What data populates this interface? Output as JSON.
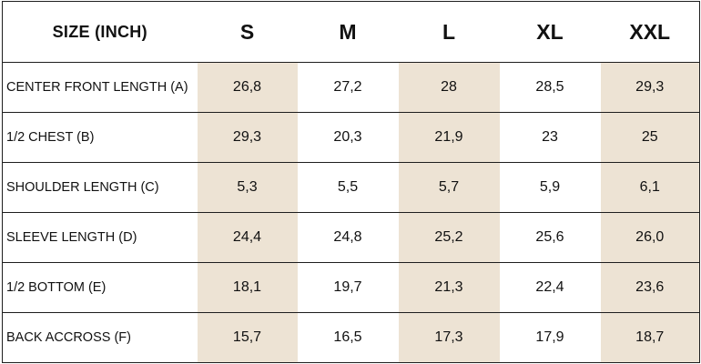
{
  "header": {
    "corner_label": "SIZE (INCH)",
    "sizes": [
      "S",
      "M",
      "L",
      "XL",
      "XXL"
    ]
  },
  "rows": [
    {
      "label": "CENTER FRONT LENGTH (A)",
      "values": [
        "26,8",
        "27,2",
        "28",
        "28,5",
        "29,3"
      ]
    },
    {
      "label": "1/2 CHEST (B)",
      "values": [
        "29,3",
        "20,3",
        "21,9",
        "23",
        "25"
      ]
    },
    {
      "label": "SHOULDER LENGTH (C)",
      "values": [
        "5,3",
        "5,5",
        "5,7",
        "5,9",
        "6,1"
      ]
    },
    {
      "label": "SLEEVE LENGTH (D)",
      "values": [
        "24,4",
        "24,8",
        "25,2",
        "25,6",
        "26,0"
      ]
    },
    {
      "label": "1/2 BOTTOM (E)",
      "values": [
        "18,1",
        "19,7",
        "21,3",
        "22,4",
        "23,6"
      ]
    },
    {
      "label": "BACK ACCROSS (F)",
      "values": [
        "15,7",
        "16,5",
        "17,3",
        "17,9",
        "18,7"
      ]
    }
  ],
  "colors": {
    "shaded_column": "#ede3d4",
    "border": "#1e1e1e",
    "text": "#111111"
  }
}
